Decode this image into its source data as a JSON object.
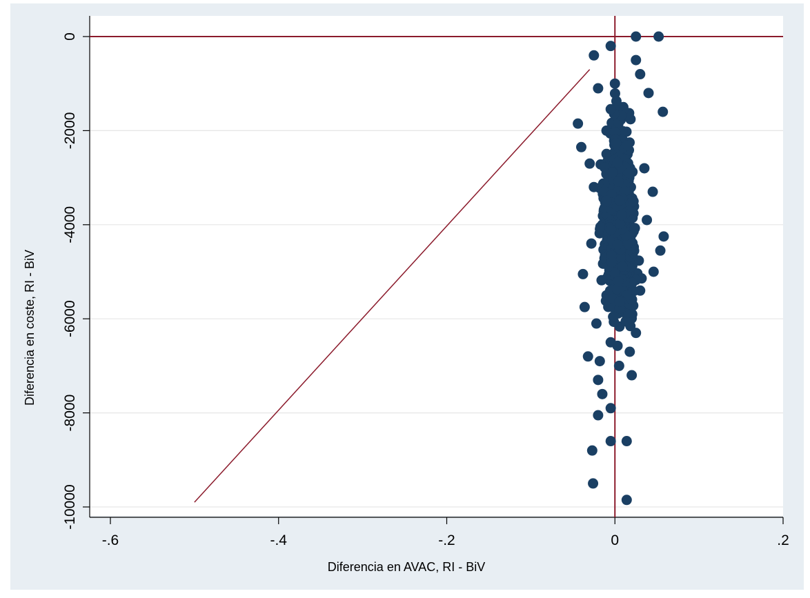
{
  "chart_data": {
    "type": "scatter",
    "title": "",
    "xlabel": "Diferencia en AVAC, RI - BiV",
    "ylabel": "Diferencia en coste, RI - BiV",
    "xlim": [
      -0.6,
      0.2
    ],
    "ylim": [
      -10000,
      0
    ],
    "x_ticks": [
      -0.6,
      -0.4,
      -0.2,
      0,
      0.2
    ],
    "x_tick_labels": [
      "-.6",
      "-.4",
      "-.2",
      "0",
      ".2"
    ],
    "y_ticks": [
      0,
      -2000,
      -4000,
      -6000,
      -8000,
      -10000
    ],
    "y_tick_labels": [
      "0",
      "-2000",
      "-4000",
      "-6000",
      "-8000",
      "-10000"
    ],
    "grid": "horizontal",
    "reference_lines": [
      {
        "orientation": "horizontal",
        "value": 0,
        "color": "#8b1a2b"
      },
      {
        "orientation": "vertical",
        "value": 0,
        "color": "#8b1a2b"
      }
    ],
    "threshold_line": {
      "x": [
        -0.5,
        -0.03
      ],
      "y": [
        -9900,
        -700
      ],
      "color": "#8b1a2b"
    },
    "point_color": "#1a3f63",
    "background": "#e8eef3",
    "plot_background": "#ffffff",
    "series": [
      {
        "values": [
          [
            0.025,
            0
          ],
          [
            0.052,
            0
          ],
          [
            -0.005,
            -200
          ],
          [
            -0.025,
            -400
          ],
          [
            0.025,
            -500
          ],
          [
            -0.044,
            -1850
          ],
          [
            -0.04,
            -2350
          ],
          [
            0.057,
            -1600
          ],
          [
            0.058,
            -4250
          ],
          [
            0.054,
            -4550
          ],
          [
            0.046,
            -5000
          ],
          [
            -0.038,
            -5050
          ],
          [
            -0.036,
            -5750
          ],
          [
            -0.032,
            -6800
          ],
          [
            -0.02,
            -7300
          ],
          [
            -0.015,
            -7600
          ],
          [
            -0.005,
            -7900
          ],
          [
            -0.02,
            -8050
          ],
          [
            -0.005,
            -8600
          ],
          [
            0.014,
            -8600
          ],
          [
            -0.027,
            -8800
          ],
          [
            -0.026,
            -9500
          ],
          [
            0.014,
            -9850
          ],
          [
            0.0,
            -1000
          ],
          [
            0.01,
            -1500
          ],
          [
            -0.01,
            -2000
          ],
          [
            0.015,
            -2500
          ],
          [
            -0.005,
            -3000
          ],
          [
            0.02,
            -3500
          ],
          [
            -0.015,
            -4000
          ],
          [
            0.01,
            -4500
          ],
          [
            0.0,
            -5000
          ],
          [
            -0.01,
            -5500
          ],
          [
            0.015,
            -6000
          ],
          [
            -0.005,
            -6500
          ],
          [
            0.005,
            -7000
          ],
          [
            0.03,
            -800
          ],
          [
            0.04,
            -1200
          ],
          [
            -0.02,
            -1100
          ],
          [
            0.035,
            -2800
          ],
          [
            -0.025,
            -3200
          ],
          [
            0.038,
            -3900
          ],
          [
            -0.028,
            -4400
          ],
          [
            0.03,
            -5400
          ],
          [
            -0.022,
            -6100
          ],
          [
            0.025,
            -6300
          ],
          [
            -0.018,
            -6900
          ],
          [
            0.02,
            -7200
          ],
          [
            -0.03,
            -2700
          ],
          [
            0.045,
            -3300
          ]
        ]
      }
    ]
  }
}
